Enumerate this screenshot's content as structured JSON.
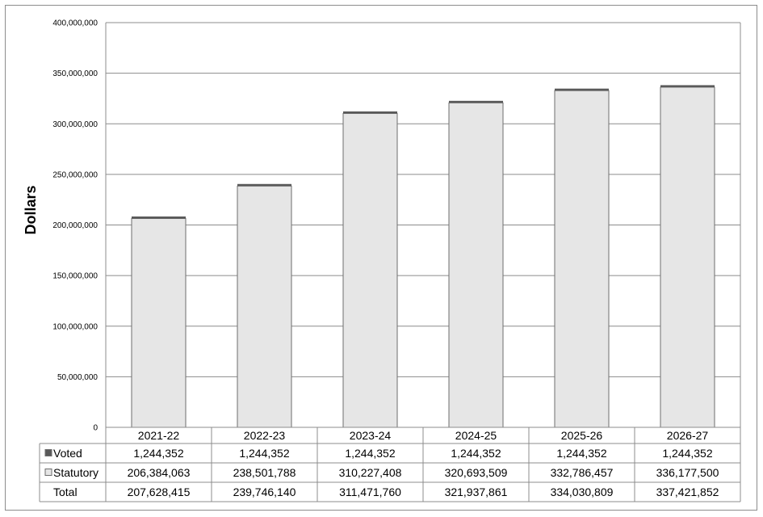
{
  "chart_data": {
    "type": "bar",
    "stacked": true,
    "ylabel": "Dollars",
    "ylim": [
      0,
      400000000
    ],
    "ytick_step": 50000000,
    "yticks": [
      "0",
      "50,000,000",
      "100,000,000",
      "150,000,000",
      "200,000,000",
      "250,000,000",
      "300,000,000",
      "350,000,000",
      "400,000,000"
    ],
    "grid": true,
    "categories": [
      "2021-22",
      "2022-23",
      "2023-24",
      "2024-25",
      "2025-26",
      "2026-27"
    ],
    "series": [
      {
        "name": "Statutory",
        "color": "#e6e6e6",
        "values": [
          206384063,
          238501788,
          310227408,
          320693509,
          332786457,
          336177500
        ]
      },
      {
        "name": "Voted",
        "color": "#595959",
        "values": [
          1244352,
          1244352,
          1244352,
          1244352,
          1244352,
          1244352
        ]
      }
    ],
    "table": {
      "rows": [
        {
          "label": "Voted",
          "legend_color": "#595959",
          "cells": [
            "1,244,352",
            "1,244,352",
            "1,244,352",
            "1,244,352",
            "1,244,352",
            "1,244,352"
          ]
        },
        {
          "label": "Statutory",
          "legend_color": "#e6e6e6",
          "cells": [
            "206,384,063",
            "238,501,788",
            "310,227,408",
            "320,693,509",
            "332,786,457",
            "336,177,500"
          ]
        },
        {
          "label": "Total",
          "legend_color": null,
          "cells": [
            "207,628,415",
            "239,746,140",
            "311,471,760",
            "321,937,861",
            "334,030,809",
            "337,421,852"
          ]
        }
      ]
    }
  }
}
